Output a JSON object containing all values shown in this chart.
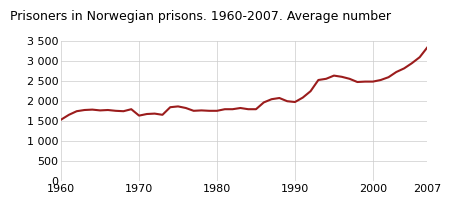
{
  "title": "Prisoners in Norwegian prisons. 1960-2007. Average number",
  "years": [
    1960,
    1961,
    1962,
    1963,
    1964,
    1965,
    1966,
    1967,
    1968,
    1969,
    1970,
    1971,
    1972,
    1973,
    1974,
    1975,
    1976,
    1977,
    1978,
    1979,
    1980,
    1981,
    1982,
    1983,
    1984,
    1985,
    1986,
    1987,
    1988,
    1989,
    1990,
    1991,
    1992,
    1993,
    1994,
    1995,
    1996,
    1997,
    1998,
    1999,
    2000,
    2001,
    2002,
    2003,
    2004,
    2005,
    2006,
    2007
  ],
  "values": [
    1540,
    1660,
    1750,
    1780,
    1790,
    1770,
    1780,
    1760,
    1750,
    1800,
    1640,
    1680,
    1690,
    1660,
    1850,
    1870,
    1830,
    1760,
    1770,
    1760,
    1760,
    1800,
    1800,
    1830,
    1800,
    1800,
    1970,
    2050,
    2080,
    2000,
    1980,
    2090,
    2250,
    2530,
    2560,
    2640,
    2610,
    2560,
    2480,
    2490,
    2490,
    2530,
    2600,
    2730,
    2820,
    2950,
    3100,
    3350
  ],
  "line_color": "#9b1c1c",
  "line_width": 1.5,
  "ylim": [
    0,
    3500
  ],
  "yticks": [
    0,
    500,
    1000,
    1500,
    2000,
    2500,
    3000,
    3500
  ],
  "ytick_labels": [
    "0",
    "500",
    "1 000",
    "1 500",
    "2 000",
    "2 500",
    "3 000",
    "3 500"
  ],
  "xlim": [
    1960,
    2007
  ],
  "xticks": [
    1960,
    1970,
    1980,
    1990,
    2000,
    2007
  ],
  "background_color": "#ffffff",
  "plot_bg_color": "#ffffff",
  "grid_color": "#cccccc",
  "title_fontsize": 9,
  "tick_fontsize": 8
}
